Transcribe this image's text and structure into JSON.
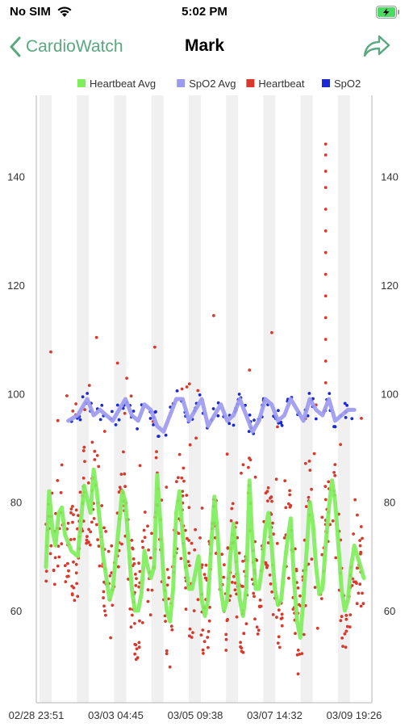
{
  "status_bar": {
    "carrier": "No SIM",
    "time": "5:02 PM",
    "wifi_icon": "wifi-icon",
    "battery_icon": "battery-charging-icon",
    "battery_color": "#4cd964"
  },
  "nav": {
    "back_label": "CardioWatch",
    "back_icon": "chevron-left-icon",
    "title": "Mark",
    "share_icon": "share-arrow-icon",
    "accent_color": "#5aa87f"
  },
  "chart_data": {
    "type": "scatter",
    "title": "",
    "xlabel": "",
    "ylabel": "",
    "ylim": [
      43,
      155
    ],
    "y_ticks": [
      "60",
      "80",
      "100",
      "120",
      "140"
    ],
    "y_tick_values": [
      60,
      80,
      100,
      120,
      140
    ],
    "x_ticks": [
      "02/28 23:51",
      "03/03 04:45",
      "03/05 09:38",
      "03/07 14:32",
      "03/09 19:26"
    ],
    "x_tick_positions": [
      0,
      0.25,
      0.5,
      0.75,
      1.0
    ],
    "grid": "alternating vertical bands",
    "legend_position": "top",
    "legend": [
      {
        "label": "Heartbeat Avg",
        "color": "#7fee5c"
      },
      {
        "label": "SpO2 Avg",
        "color": "#9c9af0"
      },
      {
        "label": "Heartbeat",
        "color": "#d63a2c"
      },
      {
        "label": "SpO2",
        "color": "#1a2ad0"
      }
    ],
    "series": [
      {
        "name": "Heartbeat Avg",
        "kind": "line",
        "x": [
          0.0,
          0.01,
          0.02,
          0.03,
          0.04,
          0.05,
          0.06,
          0.08,
          0.1,
          0.12,
          0.14,
          0.15,
          0.16,
          0.17,
          0.18,
          0.19,
          0.2,
          0.21,
          0.22,
          0.23,
          0.24,
          0.25,
          0.26,
          0.27,
          0.28,
          0.29,
          0.3,
          0.31,
          0.32,
          0.33,
          0.34,
          0.35,
          0.36,
          0.37,
          0.38,
          0.39,
          0.4,
          0.41,
          0.42,
          0.43,
          0.44,
          0.45,
          0.46,
          0.47,
          0.48,
          0.49,
          0.5,
          0.51,
          0.52,
          0.53,
          0.54,
          0.55,
          0.56,
          0.57,
          0.58,
          0.59,
          0.6,
          0.61,
          0.62,
          0.63,
          0.64,
          0.65,
          0.66,
          0.67,
          0.68,
          0.69,
          0.7,
          0.71,
          0.72,
          0.73,
          0.74,
          0.75,
          0.76,
          0.77,
          0.78,
          0.79,
          0.8,
          0.81,
          0.82,
          0.83,
          0.84,
          0.85,
          0.86,
          0.87,
          0.88,
          0.89,
          0.9,
          0.91,
          0.92,
          0.93,
          0.94,
          0.95,
          0.96,
          0.97,
          0.98,
          0.99,
          1.0
        ],
        "y": [
          68,
          82,
          75,
          72,
          78,
          79,
          74,
          71,
          70,
          83,
          78,
          86,
          82,
          76,
          70,
          66,
          62,
          64,
          70,
          76,
          82,
          80,
          72,
          64,
          60,
          60,
          63,
          71,
          68,
          66,
          68,
          85,
          76,
          66,
          60,
          58,
          64,
          78,
          82,
          74,
          68,
          64,
          64,
          67,
          70,
          62,
          59,
          62,
          72,
          81,
          74,
          64,
          60,
          62,
          70,
          76,
          68,
          62,
          59,
          64,
          84,
          72,
          64,
          64,
          68,
          75,
          78,
          72,
          64,
          61,
          62,
          68,
          73,
          77,
          66,
          58,
          55,
          62,
          71,
          80,
          76,
          68,
          63,
          64,
          72,
          79,
          84,
          80,
          72,
          64,
          60,
          62,
          68,
          72,
          70,
          68,
          66
        ],
        "color": "#7fee5c"
      },
      {
        "name": "SpO2 Avg",
        "kind": "line",
        "x": [
          0.07,
          0.1,
          0.13,
          0.15,
          0.17,
          0.19,
          0.21,
          0.23,
          0.25,
          0.27,
          0.29,
          0.31,
          0.33,
          0.35,
          0.37,
          0.39,
          0.41,
          0.43,
          0.45,
          0.47,
          0.49,
          0.51,
          0.53,
          0.55,
          0.57,
          0.59,
          0.61,
          0.63,
          0.65,
          0.67,
          0.69,
          0.71,
          0.73,
          0.75,
          0.77,
          0.79,
          0.81,
          0.83,
          0.85,
          0.87,
          0.89,
          0.91,
          0.93,
          0.95,
          0.97
        ],
        "y": [
          95,
          96,
          99,
          96,
          97,
          96,
          95,
          97,
          99,
          96,
          95,
          98,
          97,
          94,
          93,
          96,
          99,
          99,
          95,
          97,
          99,
          94,
          96,
          98,
          95,
          96,
          99,
          96,
          93,
          95,
          99,
          98,
          95,
          96,
          99,
          97,
          95,
          99,
          97,
          96,
          99,
          95,
          96,
          97,
          97
        ],
        "color": "#9c9af0"
      },
      {
        "name": "Heartbeat",
        "kind": "points",
        "count": 620,
        "seed": 7,
        "color": "#d63a2c"
      },
      {
        "name": "SpO2",
        "kind": "points",
        "count": 110,
        "seed": 11,
        "color": "#1a2ad0"
      }
    ]
  }
}
